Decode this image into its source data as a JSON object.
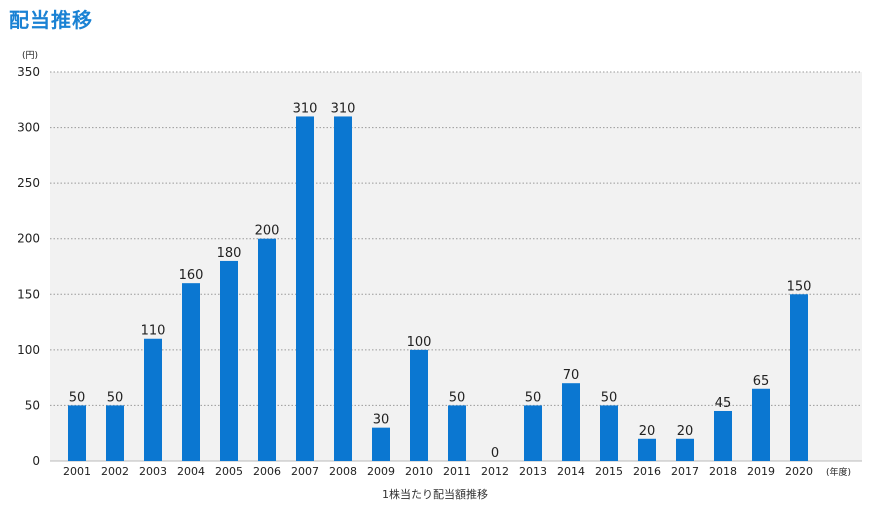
{
  "page_title": "配当推移",
  "colors": {
    "bar": "#0b77d1",
    "plot_bg": "#f2f2f2",
    "title": "#1a82d4",
    "grid": "#9a9a9a"
  },
  "chart_data": {
    "type": "bar",
    "title": "",
    "xlabel": "1株当たり配当額推移",
    "ylabel": "",
    "y_unit": "(円)",
    "x_unit": "(年度)",
    "categories": [
      "2001",
      "2002",
      "2003",
      "2004",
      "2005",
      "2006",
      "2007",
      "2008",
      "2009",
      "2010",
      "2011",
      "2012",
      "2013",
      "2014",
      "2015",
      "2016",
      "2017",
      "2018",
      "2019",
      "2020"
    ],
    "values": [
      50,
      50,
      110,
      160,
      180,
      200,
      310,
      310,
      30,
      100,
      50,
      0,
      50,
      70,
      50,
      20,
      20,
      45,
      65,
      150
    ],
    "data_labels": [
      "50",
      "50",
      "110",
      "160",
      "180",
      "200",
      "310",
      "310",
      "30",
      "100",
      "50",
      "0",
      "50",
      "70",
      "50",
      "20",
      "20",
      "45",
      "65",
      "150"
    ],
    "ylim": [
      0,
      350
    ],
    "yticks": [
      0,
      50,
      100,
      150,
      200,
      250,
      300,
      350
    ],
    "grid": true,
    "legend": "none"
  }
}
